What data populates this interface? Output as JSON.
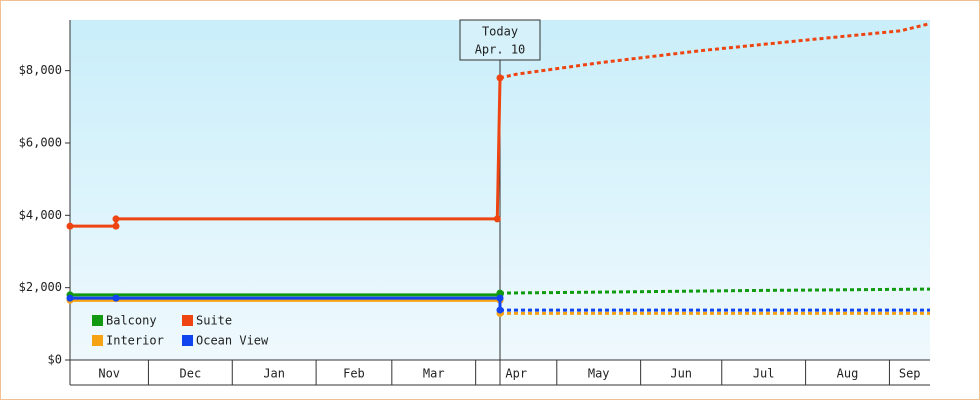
{
  "chart_data": {
    "type": "line",
    "ylim": [
      0,
      9400
    ],
    "yticks": [
      {
        "value": 0,
        "label": "$0"
      },
      {
        "value": 2000,
        "label": "$2,000"
      },
      {
        "value": 4000,
        "label": "$4,000"
      },
      {
        "value": 6000,
        "label": "$6,000"
      },
      {
        "value": 8000,
        "label": "$8,000"
      }
    ],
    "xlim": [
      0,
      318
    ],
    "xticks": [
      {
        "value": 0,
        "label": "Nov"
      },
      {
        "value": 29,
        "label": "Dec"
      },
      {
        "value": 60,
        "label": "Jan"
      },
      {
        "value": 91,
        "label": "Feb"
      },
      {
        "value": 119,
        "label": "Mar"
      },
      {
        "value": 150,
        "label": "Apr"
      },
      {
        "value": 180,
        "label": "May"
      },
      {
        "value": 211,
        "label": "Jun"
      },
      {
        "value": 241,
        "label": "Jul"
      },
      {
        "value": 272,
        "label": "Aug"
      },
      {
        "value": 303,
        "label": "Sep"
      }
    ],
    "today": {
      "x": 159,
      "label": "Today",
      "date": "Apr. 10"
    },
    "legend": "lower left",
    "series": [
      {
        "name": "Balcony",
        "color": "#119911",
        "x": [
          0,
          159,
          159
        ],
        "values": [
          1800,
          1800,
          1850
        ],
        "forecast": {
          "x": [
            159,
            200,
            250,
            318
          ],
          "values": [
            1850,
            1880,
            1920,
            1960
          ]
        }
      },
      {
        "name": "Suite",
        "color": "#ee4411",
        "x": [
          0,
          17,
          17,
          158,
          159
        ],
        "values": [
          3700,
          3700,
          3900,
          3900,
          7800
        ],
        "forecast": {
          "x": [
            159,
            165,
            196,
            233,
            270,
            307,
            318
          ],
          "values": [
            7800,
            7900,
            8220,
            8550,
            8830,
            9100,
            9300
          ]
        }
      },
      {
        "name": "Interior",
        "color": "#f5a314",
        "x": [
          0,
          159,
          159
        ],
        "values": [
          1650,
          1650,
          1290
        ],
        "forecast": {
          "x": [
            159,
            318
          ],
          "values": [
            1290,
            1290
          ]
        }
      },
      {
        "name": "Ocean View",
        "color": "#1144ee",
        "x": [
          0,
          17,
          159,
          159
        ],
        "values": [
          1710,
          1710,
          1710,
          1380
        ],
        "forecast": {
          "x": [
            159,
            318
          ],
          "values": [
            1380,
            1380
          ]
        }
      }
    ]
  }
}
